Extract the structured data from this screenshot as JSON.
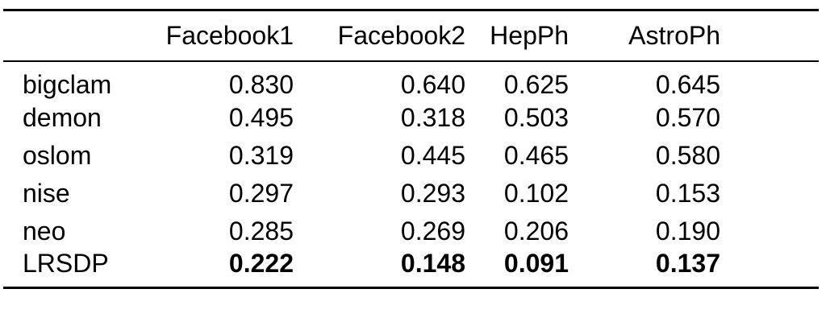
{
  "table": {
    "columns": [
      "",
      "Facebook1",
      "Facebook2",
      "HepPh",
      "AstroPh"
    ],
    "rows": [
      {
        "label": "bigclam",
        "values": [
          "0.830",
          "0.640",
          "0.625",
          "0.645"
        ],
        "bold": false
      },
      {
        "label": "demon",
        "values": [
          "0.495",
          "0.318",
          "0.503",
          "0.570"
        ],
        "bold": false
      },
      {
        "label": "oslom",
        "values": [
          "0.319",
          "0.445",
          "0.465",
          "0.580"
        ],
        "bold": false
      },
      {
        "label": "nise",
        "values": [
          "0.297",
          "0.293",
          "0.102",
          "0.153"
        ],
        "bold": false
      },
      {
        "label": "neo",
        "values": [
          "0.285",
          "0.269",
          "0.206",
          "0.190"
        ],
        "bold": false
      },
      {
        "label": "LRSDP",
        "values": [
          "0.222",
          "0.148",
          "0.091",
          "0.137"
        ],
        "bold": true
      }
    ]
  },
  "chart_data": {
    "type": "table",
    "title": "",
    "categories": [
      "Facebook1",
      "Facebook2",
      "HepPh",
      "AstroPh"
    ],
    "series": [
      {
        "name": "bigclam",
        "values": [
          0.83,
          0.64,
          0.625,
          0.645
        ]
      },
      {
        "name": "demon",
        "values": [
          0.495,
          0.318,
          0.503,
          0.57
        ]
      },
      {
        "name": "oslom",
        "values": [
          0.319,
          0.445,
          0.465,
          0.58
        ]
      },
      {
        "name": "nise",
        "values": [
          0.297,
          0.293,
          0.102,
          0.153
        ]
      },
      {
        "name": "neo",
        "values": [
          0.285,
          0.269,
          0.206,
          0.19
        ]
      },
      {
        "name": "LRSDP",
        "values": [
          0.222,
          0.148,
          0.091,
          0.137
        ]
      }
    ],
    "layout_hints": {
      "bold_row": "LRSDP",
      "rules": [
        "top",
        "mid",
        "bottom"
      ]
    }
  }
}
